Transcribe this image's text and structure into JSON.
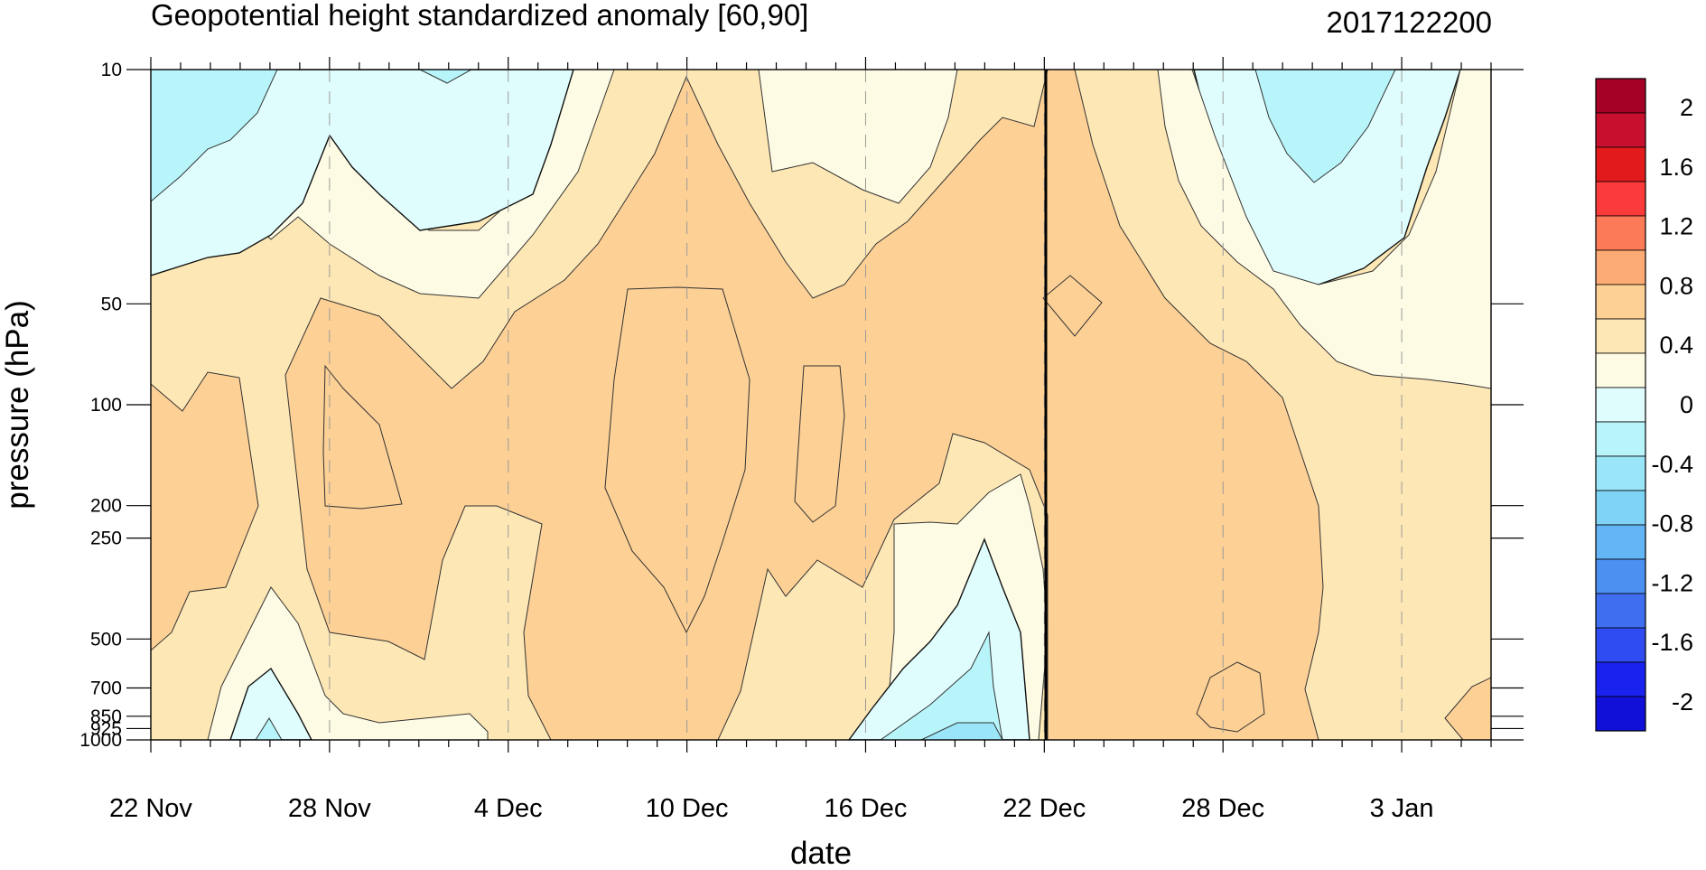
{
  "chart_data": {
    "type": "contour",
    "title": "Geopotential height standardized anomaly [60,90]",
    "timestamp": "2017122200",
    "xlabel": "date",
    "ylabel": "pressure (hPa)",
    "x_ticks": [
      "22 Nov",
      "28 Nov",
      "4 Dec",
      "10 Dec",
      "16 Dec",
      "22 Dec",
      "28 Dec",
      "3 Jan"
    ],
    "x_range": [
      "22 Nov",
      "6 Jan"
    ],
    "y_ticks": [
      "10",
      "50",
      "100",
      "200",
      "250",
      "500",
      "700",
      "850",
      "925",
      "1000"
    ],
    "y_range": [
      1000,
      10
    ],
    "y_scale": "log",
    "current_date_line": "22 Dec",
    "colorbar": {
      "labels": [
        "2",
        "1.6",
        "1.2",
        "0.8",
        "0.4",
        "0",
        "-0.4",
        "-0.8",
        "-1.2",
        "-1.6",
        "-2"
      ],
      "colors": [
        "#a50026",
        "#c8102e",
        "#e31a1c",
        "#fb3b3b",
        "#fc7a57",
        "#fdab74",
        "#fdd095",
        "#fde7b5",
        "#fefbe4",
        "#e0fdfd",
        "#b8f5fb",
        "#9ae6f8",
        "#7fd4f6",
        "#64b5f6",
        "#4c91f2",
        "#3f6ff0",
        "#2e4cf2",
        "#1a22ee",
        "#1010d8"
      ]
    },
    "regions": [
      {
        "level": "0.4 to 0.8",
        "color": "#fdd095",
        "dates": [
          "24 Nov - 27 Nov",
          "29 Nov - 16 Dec",
          "22 Dec - 31 Dec"
        ],
        "pressure": "50-1000 hPa"
      },
      {
        "level": "-0.4 to 0",
        "color": "#e0fdfd",
        "dates": [
          "22 Nov - 3 Dec",
          "29 Dec - 3 Jan"
        ],
        "pressure": "10-30 hPa"
      },
      {
        "level": "-0.8 to -0.4",
        "color": "#b8f5fb",
        "dates": [
          "22 Nov - 25 Nov",
          "30 Dec - 2 Jan"
        ],
        "pressure": "10-20 hPa"
      }
    ]
  }
}
